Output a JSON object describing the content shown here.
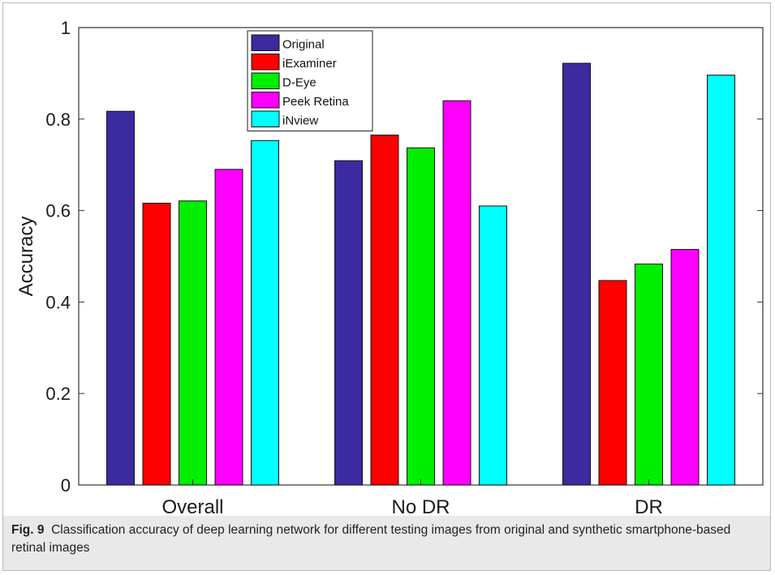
{
  "chart_data": {
    "type": "bar",
    "categories": [
      "Overall",
      "No DR",
      "DR"
    ],
    "series": [
      {
        "name": "Original",
        "color": "#3b2aa0",
        "values": [
          0.817,
          0.709,
          0.922
        ]
      },
      {
        "name": "iExaminer",
        "color": "#ff0000",
        "values": [
          0.616,
          0.765,
          0.447
        ]
      },
      {
        "name": "D-Eye",
        "color": "#00ee00",
        "values": [
          0.621,
          0.737,
          0.483
        ]
      },
      {
        "name": "Peek Retina",
        "color": "#ff00ff",
        "values": [
          0.69,
          0.84,
          0.515
        ]
      },
      {
        "name": "iNview",
        "color": "#00ffff",
        "values": [
          0.753,
          0.61,
          0.896
        ]
      }
    ],
    "ylabel": "Accuracy",
    "xlabel": "",
    "ylim": [
      0,
      1
    ],
    "yticks": [
      "0",
      "0.2",
      "0.4",
      "0.6",
      "0.8",
      "1"
    ],
    "grid": false,
    "legend_position": "top-left"
  },
  "caption": {
    "label": "Fig. 9",
    "text": "Classification accuracy of deep learning network for different testing images from original and synthetic smartphone-based retinal images"
  }
}
